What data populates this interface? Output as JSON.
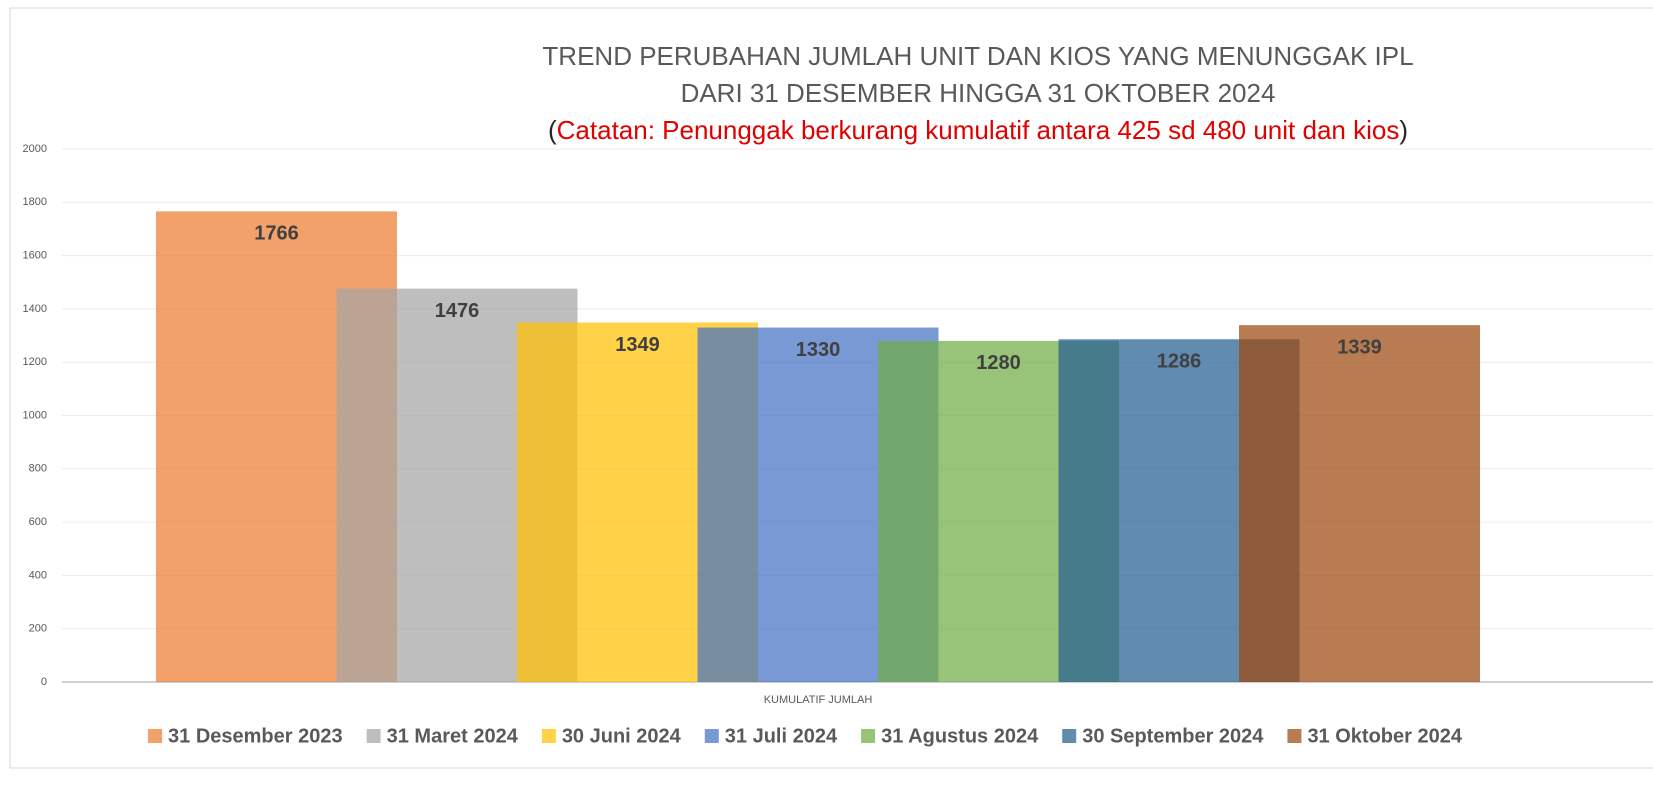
{
  "chart_data": {
    "type": "bar",
    "title": [
      "TREND PERUBAHAN JUMLAH UNIT DAN KIOS YANG MENUNGGAK IPL",
      "DARI 31 DESEMBER HINGGA 31 OKTOBER 2024"
    ],
    "subtitle": "(Catatan: Penunggak berkurang kumulatif antara 425 sd 480 unit dan kios)",
    "categories": [
      "KUMULATIF JUMLAH"
    ],
    "series": [
      {
        "name": "31 Desember 2023",
        "color": "#ed7d31",
        "values": [
          1766
        ]
      },
      {
        "name": "31 Maret 2024",
        "color": "#a5a5a5",
        "values": [
          1476
        ]
      },
      {
        "name": "30 Juni 2024",
        "color": "#ffc000",
        "values": [
          1349
        ]
      },
      {
        "name": "31 Juli 2024",
        "color": "#4472c4",
        "values": [
          1330
        ]
      },
      {
        "name": "31 Agustus 2024",
        "color": "#70ad47",
        "values": [
          1280
        ]
      },
      {
        "name": "30 September 2024",
        "color": "#255e91",
        "values": [
          1286
        ]
      },
      {
        "name": "31 Oktober 2024",
        "color": "#9e480e",
        "values": [
          1339
        ]
      }
    ],
    "ylim": [
      0,
      2000
    ],
    "yticks": [
      0,
      200,
      400,
      600,
      800,
      1000,
      1200,
      1400,
      1600,
      1800,
      2000
    ],
    "grid": true,
    "legend": "bottom"
  }
}
